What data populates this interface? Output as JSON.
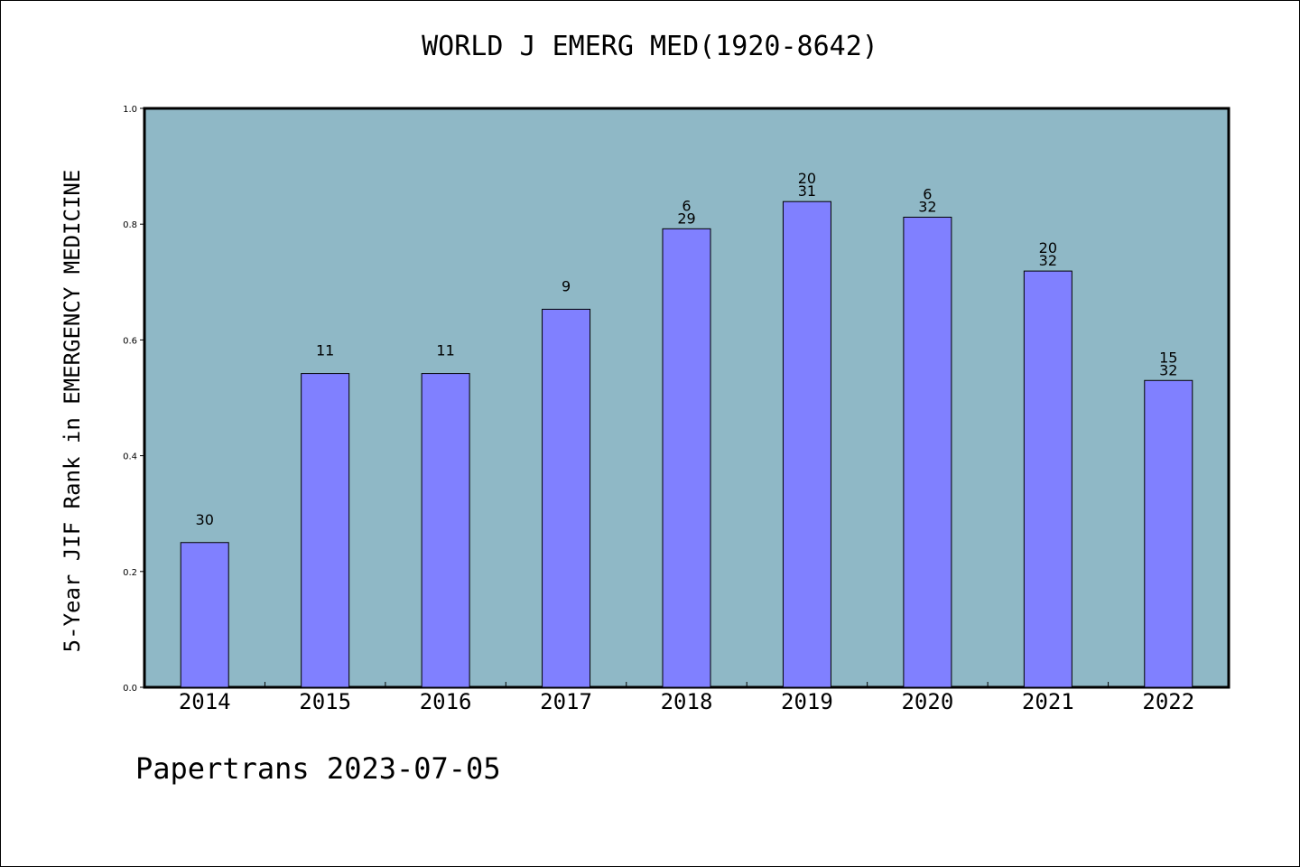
{
  "chart_data": {
    "type": "bar",
    "title": "WORLD J EMERG MED(1920-8642)",
    "ylabel": "5-Year JIF Rank in EMERGENCY MEDICINE",
    "xlabel": "",
    "categories": [
      "2014",
      "2015",
      "2016",
      "2017",
      "2018",
      "2019",
      "2020",
      "2021",
      "2022"
    ],
    "values": [
      0.25,
      0.542,
      0.542,
      0.653,
      0.792,
      0.839,
      0.812,
      0.719,
      0.53
    ],
    "bar_labels": [
      [
        "30"
      ],
      [
        "11"
      ],
      [
        "11"
      ],
      [
        "9"
      ],
      [
        "6",
        "29"
      ],
      [
        "20",
        "31"
      ],
      [
        "6",
        "32"
      ],
      [
        "20",
        "32"
      ],
      [
        "15",
        "32"
      ]
    ],
    "ylim": [
      0,
      1
    ],
    "yticks": [
      "0.0",
      "0.2",
      "0.4",
      "0.6",
      "0.8",
      "1.0"
    ],
    "grid": false,
    "colors": {
      "plot_background": "#8fb8c6",
      "bar_fill": "#8080ff",
      "bar_edge": "#000000"
    }
  },
  "footer": {
    "text": "Papertrans 2023-07-05"
  }
}
